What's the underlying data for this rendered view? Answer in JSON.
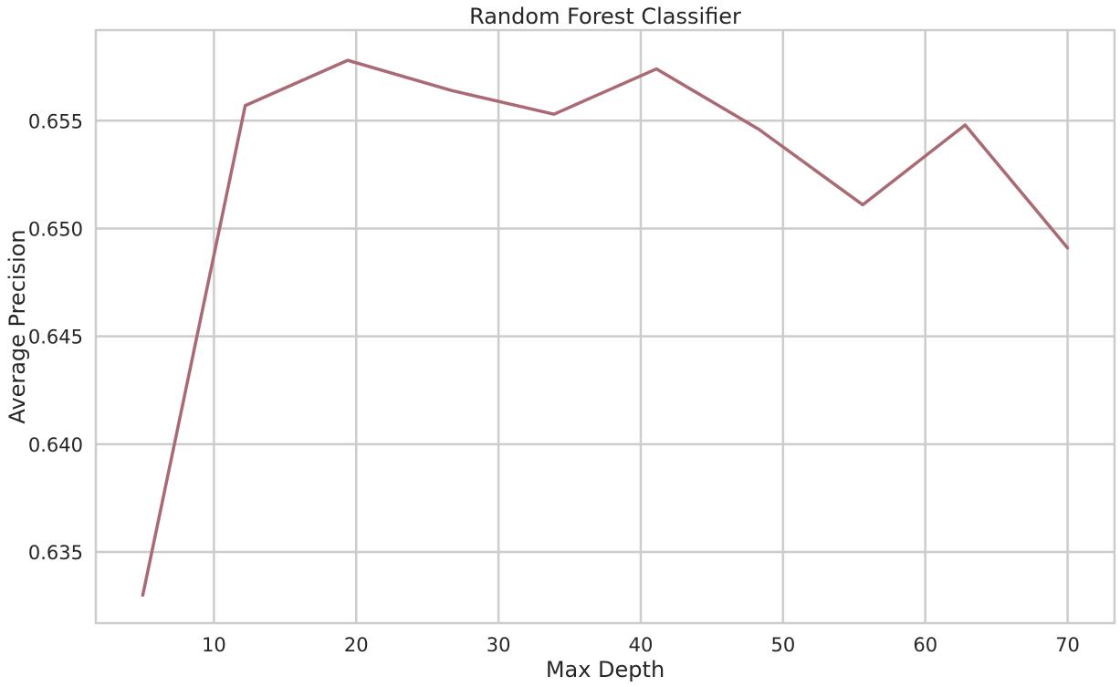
{
  "chart_data": {
    "type": "line",
    "title": "Random Forest Classifier",
    "xlabel": "Max Depth",
    "ylabel": "Average Precision",
    "xlim": [
      1.7,
      73.3
    ],
    "ylim": [
      0.6317,
      0.6592
    ],
    "xticks": [
      10,
      20,
      30,
      40,
      50,
      60,
      70
    ],
    "yticks": [
      0.635,
      0.64,
      0.645,
      0.65,
      0.655
    ],
    "ytick_labels": [
      "0.635",
      "0.640",
      "0.645",
      "0.650",
      "0.655"
    ],
    "grid": true,
    "line_color": "#a96a74",
    "series": [
      {
        "x": [
          5.0,
          12.2,
          19.4,
          26.7,
          33.9,
          41.1,
          48.3,
          55.6,
          62.8,
          70.0
        ],
        "values": [
          0.633,
          0.6557,
          0.6578,
          0.6564,
          0.6553,
          0.6574,
          0.6546,
          0.6511,
          0.6548,
          0.6491
        ]
      }
    ]
  }
}
